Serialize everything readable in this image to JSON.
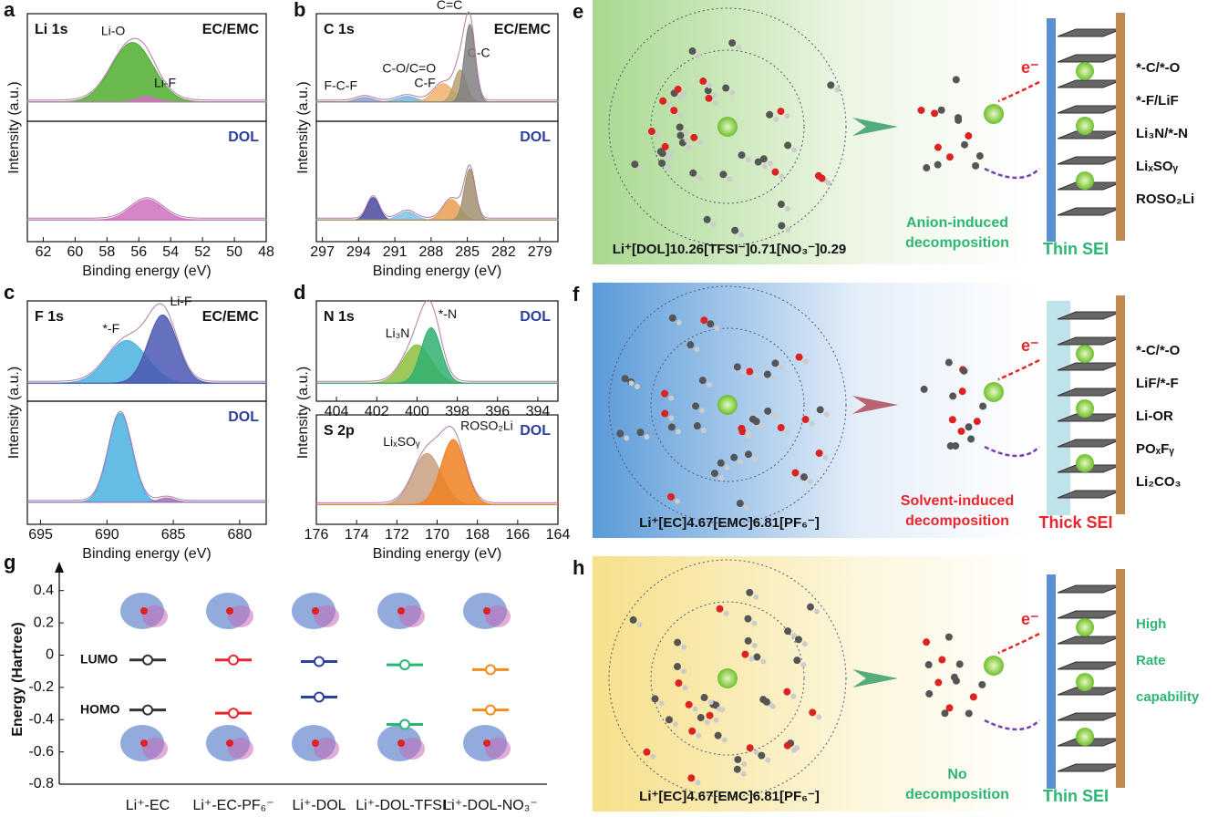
{
  "xps": [
    {
      "label": "a",
      "xlabel": "Binding energy (eV)",
      "ylabel": "Intensity (a.u.)",
      "xlim": [
        63,
        48
      ],
      "xticks": [
        62,
        60,
        58,
        56,
        54,
        52,
        50,
        48
      ],
      "subplots": [
        {
          "element": "Li 1s",
          "electrolyte": "EC/EMC",
          "peaks": [
            {
              "name": "Li-O",
              "center": 56.4,
              "height": 0.65,
              "width": 1.3,
              "color": "#4cae2c"
            },
            {
              "name": "Li-F",
              "center": 55.5,
              "height": 0.06,
              "width": 0.6,
              "color": "#d070c0"
            }
          ]
        },
        {
          "electrolyte": "DOL",
          "peaks": [
            {
              "center": 55.5,
              "height": 0.2,
              "width": 1.0,
              "color": "#d070c0"
            }
          ]
        }
      ]
    },
    {
      "label": "b",
      "xlabel": "Binding energy (eV)",
      "ylabel": "Intensity (a.u.)",
      "xlim": [
        297.5,
        277.5
      ],
      "xticks": [
        297,
        294,
        291,
        288,
        285,
        282,
        279
      ],
      "subplots": [
        {
          "element": "C 1s",
          "electrolyte": "EC/EMC",
          "peaks": [
            {
              "name": "F-C-F",
              "center": 293.5,
              "height": 0.05,
              "width": 0.7,
              "color": "#8aa0d0"
            },
            {
              "name": "C-F",
              "center": 290,
              "height": 0.06,
              "width": 0.8,
              "color": "#6fb8e0"
            },
            {
              "name": "C-O/C=O",
              "center": 287,
              "height": 0.2,
              "width": 0.8,
              "color": "#f0b070"
            },
            {
              "name": "C-C",
              "center": 285.6,
              "height": 0.35,
              "width": 0.5,
              "color": "#b8a070"
            },
            {
              "name": "C=C",
              "center": 284.8,
              "height": 0.85,
              "width": 0.45,
              "color": "#808080"
            }
          ]
        },
        {
          "electrolyte": "DOL",
          "peaks": [
            {
              "center": 292.8,
              "height": 0.22,
              "width": 0.5,
              "color": "#4a4aa0"
            },
            {
              "center": 290,
              "height": 0.08,
              "width": 0.7,
              "color": "#80c0e0"
            },
            {
              "center": 286.3,
              "height": 0.2,
              "width": 0.7,
              "color": "#e8a050"
            },
            {
              "center": 284.8,
              "height": 0.5,
              "width": 0.45,
              "color": "#a09070"
            }
          ]
        }
      ]
    },
    {
      "label": "c",
      "xlabel": "Binding energy (eV)",
      "ylabel": "Intensity (a.u.)",
      "xlim": [
        696,
        678
      ],
      "xticks": [
        695,
        690,
        685,
        680
      ],
      "subplots": [
        {
          "element": "F 1s",
          "electrolyte": "EC/EMC",
          "peaks": [
            {
              "name": "*-F",
              "center": 688.5,
              "height": 0.5,
              "width": 1.5,
              "color": "#4ab0e0"
            },
            {
              "name": "Li-F",
              "center": 685.8,
              "height": 0.8,
              "width": 1.1,
              "color": "#4a58b0"
            }
          ]
        },
        {
          "electrolyte": "DOL",
          "peaks": [
            {
              "center": 689,
              "height": 0.85,
              "width": 0.9,
              "color": "#4ab0e0"
            },
            {
              "center": 685.5,
              "height": 0.04,
              "width": 0.6,
              "color": "#a070b0"
            }
          ]
        }
      ]
    },
    {
      "label": "d",
      "xlabel": "Binding energy (eV)",
      "ylabel": "Intensity (a.u.)",
      "xlim": [
        176,
        164
      ],
      "xticks": [
        176,
        174,
        172,
        170,
        168,
        166,
        164
      ],
      "top_xlim": [
        405,
        393
      ],
      "top_xticks": [
        404,
        402,
        400,
        398,
        396,
        394
      ],
      "subplots": [
        {
          "element": "N 1s",
          "electrolyte": "DOL",
          "peaks": [
            {
              "name": "Li₃N",
              "center": 400,
              "height": 0.45,
              "width": 0.7,
              "color": "#8cc040"
            },
            {
              "name": "*-N",
              "center": 399.3,
              "height": 0.65,
              "width": 0.5,
              "color": "#30b070"
            }
          ]
        },
        {
          "element": "S 2p",
          "electrolyte": "DOL",
          "peaks": [
            {
              "name": "LiₓSOᵧ",
              "center": 170.5,
              "height": 0.55,
              "width": 0.7,
              "color": "#c8a080"
            },
            {
              "name": "ROSO₂Li",
              "center": 169.2,
              "height": 0.7,
              "width": 0.6,
              "color": "#f08020"
            }
          ]
        }
      ]
    }
  ],
  "chart_data": {
    "type": "energy-level",
    "label": "g",
    "ylabel": "Energy (Hartree)",
    "categories": [
      "Li⁺-EC",
      "Li⁺-EC-PF₆⁻",
      "Li⁺-DOL",
      "Li⁺-DOL-TFSI⁻",
      "Li⁺-DOL-NO₃⁻"
    ],
    "colors": [
      "#333333",
      "#e8262b",
      "#2b3f9e",
      "#2bb673",
      "#f28c1e"
    ],
    "series": [
      {
        "name": "LUMO",
        "values": [
          -0.03,
          -0.03,
          -0.04,
          -0.06,
          -0.09
        ]
      },
      {
        "name": "HOMO",
        "values": [
          -0.34,
          -0.36,
          -0.26,
          -0.43,
          -0.34
        ]
      }
    ],
    "ylim": [
      -0.8,
      0.5
    ],
    "yticks": [
      0.4,
      0.2,
      0.0,
      -0.2,
      -0.4,
      -0.6,
      -0.8
    ]
  },
  "schemes": [
    {
      "label": "e",
      "formula": "Li⁺[DOL]10.26[TFSI⁻]0.71[NO₃⁻]0.29",
      "electron": "e⁻",
      "process": [
        "Anion-induced",
        "decomposition"
      ],
      "sei": "Thin SEI",
      "components": [
        "*-C/*-O",
        "*-F/LiF",
        "Li₃N/*-N",
        "LiₓSOᵧ",
        "ROSO₂Li"
      ]
    },
    {
      "label": "f",
      "formula": "Li⁺[EC]4.67[EMC]6.81[PF₆⁻]",
      "electron": "e⁻",
      "process": [
        "Solvent-induced",
        "decomposition"
      ],
      "sei": "Thick SEI",
      "components": [
        "*-C/*-O",
        "LiF/*-F",
        "Li-OR",
        "POₓFᵧ",
        "Li₂CO₃"
      ]
    },
    {
      "label": "h",
      "formula": "Li⁺[EC]4.67[EMC]6.81[PF₆⁻]",
      "electron": "e⁻",
      "process": [
        "No",
        "decomposition"
      ],
      "sei": "Thin SEI",
      "components": [
        "High",
        "Rate",
        "capability"
      ]
    }
  ]
}
